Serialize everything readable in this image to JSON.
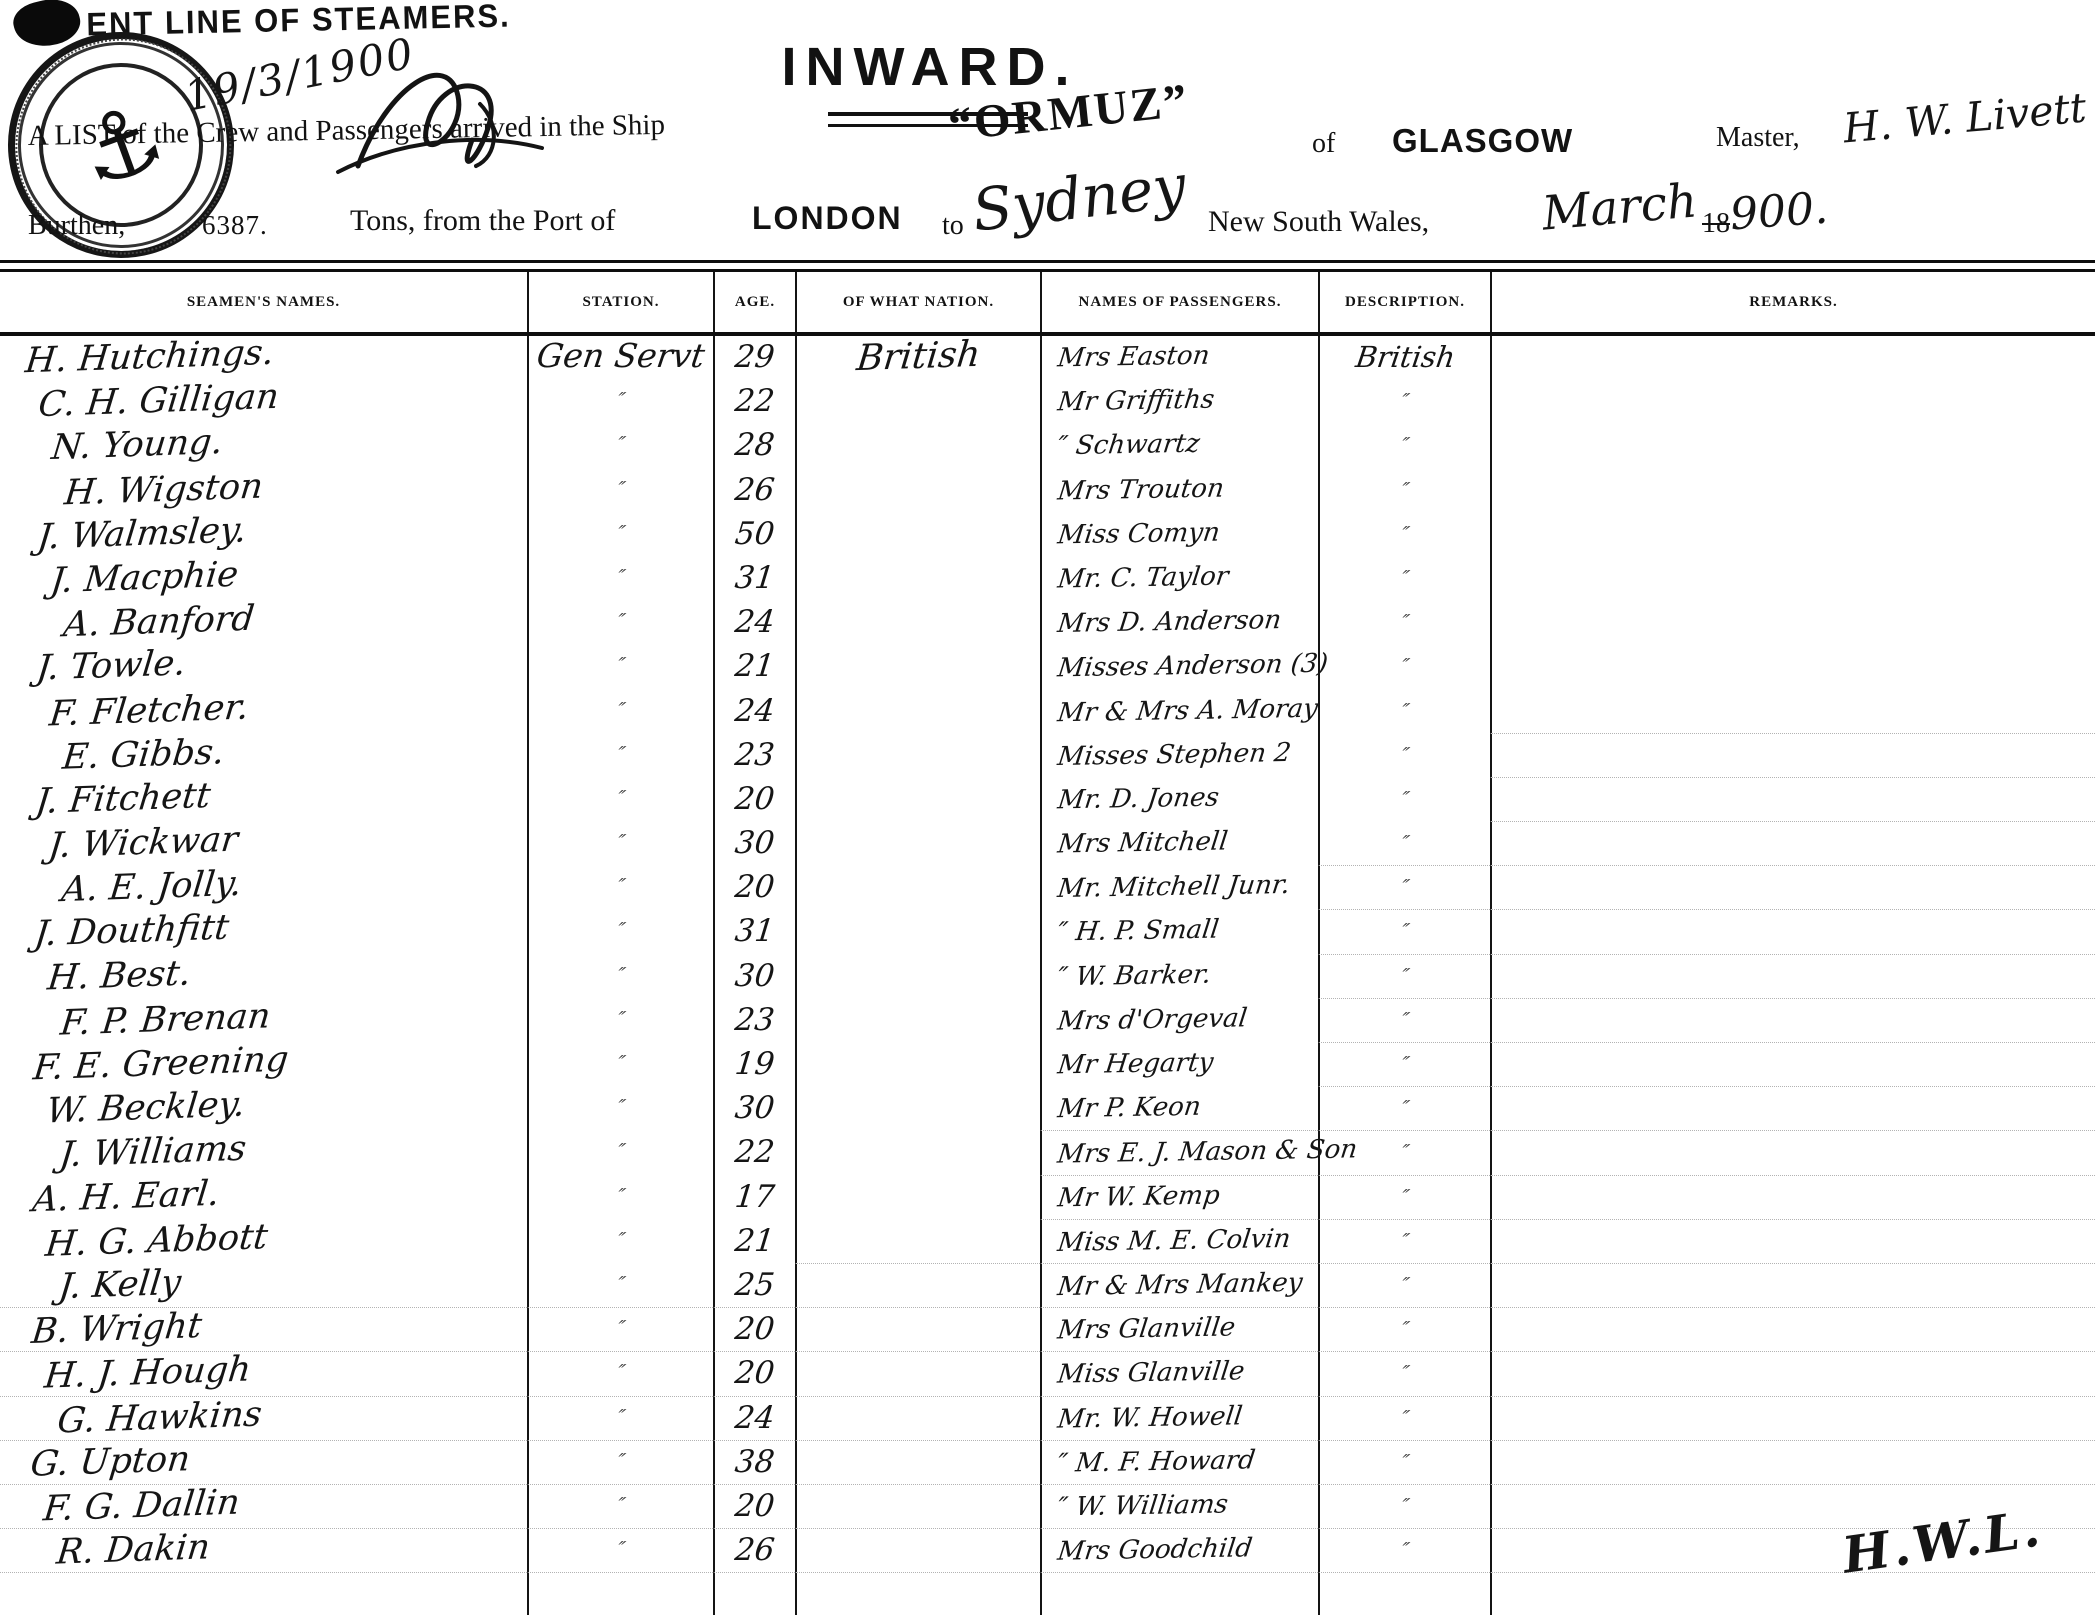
{
  "masthead": {
    "line_text": "ENT LINE OF STEAMERS.",
    "seal_icon": "anchor-seal",
    "date_hw": "19/3/1900"
  },
  "title": "INWARD.",
  "header": {
    "list_line_prefix": "A LIST of the Crew and Passengers arrived in the Ship",
    "ship_name": "“ORMUZ”",
    "of_label": "of",
    "port_of_registry": "GLASGOW",
    "master_label": "Master,",
    "master_name_hw": "H. W. Livett",
    "burthen_label": "Burthen,",
    "burthen_value": "6387.",
    "tons_line": "Tons, from the Port of",
    "port_from": "LONDON",
    "to_label": "to",
    "destination_hw": "Sydney",
    "destination_rest": "New South Wales,",
    "month_hw": "March",
    "year_printed": "18",
    "year_hw": "900."
  },
  "table": {
    "columns": [
      "SEAMEN'S NAMES.",
      "STATION.",
      "AGE.",
      "OF WHAT NATION.",
      "NAMES OF PASSENGERS.",
      "DESCRIPTION.",
      "REMARKS."
    ],
    "ditto_mark": "″",
    "rows": [
      {
        "seaman": "H. Hutchings.",
        "station": "Gen Servt",
        "age": "29",
        "nation": "British",
        "passenger": "Mrs Easton",
        "description": "British",
        "remarks": ""
      },
      {
        "seaman": "C. H. Gilligan",
        "station": "″",
        "age": "22",
        "nation": "",
        "passenger": "Mr Griffiths",
        "description": "″",
        "remarks": ""
      },
      {
        "seaman": "N. Young.",
        "station": "″",
        "age": "28",
        "nation": "",
        "passenger": "″ Schwartz",
        "description": "″",
        "remarks": ""
      },
      {
        "seaman": "H. Wigston",
        "station": "″",
        "age": "26",
        "nation": "",
        "passenger": "Mrs Trouton",
        "description": "″",
        "remarks": ""
      },
      {
        "seaman": "J. Walmsley.",
        "station": "″",
        "age": "50",
        "nation": "",
        "passenger": "Miss Comyn",
        "description": "″",
        "remarks": ""
      },
      {
        "seaman": "J. Macphie",
        "station": "″",
        "age": "31",
        "nation": "",
        "passenger": "Mr. C. Taylor",
        "description": "″",
        "remarks": ""
      },
      {
        "seaman": "A. Banford",
        "station": "″",
        "age": "24",
        "nation": "",
        "passenger": "Mrs D. Anderson",
        "description": "″",
        "remarks": ""
      },
      {
        "seaman": "J. Towle.",
        "station": "″",
        "age": "21",
        "nation": "",
        "passenger": "Misses Anderson (3)",
        "description": "″",
        "remarks": ""
      },
      {
        "seaman": "F. Fletcher.",
        "station": "″",
        "age": "24",
        "nation": "",
        "passenger": "Mr & Mrs A. Moray",
        "description": "″",
        "remarks": ""
      },
      {
        "seaman": "E. Gibbs.",
        "station": "″",
        "age": "23",
        "nation": "",
        "passenger": "Misses Stephen 2",
        "description": "″",
        "remarks": ""
      },
      {
        "seaman": "J. Fitchett",
        "station": "″",
        "age": "20",
        "nation": "",
        "passenger": "Mr. D. Jones",
        "description": "″",
        "remarks": ""
      },
      {
        "seaman": "J. Wickwar",
        "station": "″",
        "age": "30",
        "nation": "",
        "passenger": "Mrs Mitchell",
        "description": "″",
        "remarks": ""
      },
      {
        "seaman": "A. E. Jolly.",
        "station": "″",
        "age": "20",
        "nation": "",
        "passenger": "Mr. Mitchell Junr.",
        "description": "″",
        "remarks": ""
      },
      {
        "seaman": "J. Douthfitt",
        "station": "″",
        "age": "31",
        "nation": "",
        "passenger": "″ H. P. Small",
        "description": "″",
        "remarks": ""
      },
      {
        "seaman": "H. Best.",
        "station": "″",
        "age": "30",
        "nation": "",
        "passenger": "″ W. Barker.",
        "description": "″",
        "remarks": ""
      },
      {
        "seaman": "F. P. Brenan",
        "station": "″",
        "age": "23",
        "nation": "",
        "passenger": "Mrs d'Orgeval",
        "description": "″",
        "remarks": ""
      },
      {
        "seaman": "F. E. Greening",
        "station": "″",
        "age": "19",
        "nation": "",
        "passenger": "Mr Hegarty",
        "description": "″",
        "remarks": ""
      },
      {
        "seaman": "W. Beckley.",
        "station": "″",
        "age": "30",
        "nation": "",
        "passenger": "Mr P. Keon",
        "description": "″",
        "remarks": ""
      },
      {
        "seaman": "J. Williams",
        "station": "″",
        "age": "22",
        "nation": "",
        "passenger": "Mrs E. J. Mason & Son",
        "description": "″",
        "remarks": ""
      },
      {
        "seaman": "A. H. Earl.",
        "station": "″",
        "age": "17",
        "nation": "",
        "passenger": "Mr W. Kemp",
        "description": "″",
        "remarks": ""
      },
      {
        "seaman": "H. G. Abbott",
        "station": "″",
        "age": "21",
        "nation": "",
        "passenger": "Miss M. E. Colvin",
        "description": "″",
        "remarks": ""
      },
      {
        "seaman": "J. Kelly",
        "station": "″",
        "age": "25",
        "nation": "",
        "passenger": "Mr & Mrs Mankey",
        "description": "″",
        "remarks": ""
      },
      {
        "seaman": "B. Wright",
        "station": "″",
        "age": "20",
        "nation": "",
        "passenger": "Mrs Glanville",
        "description": "″",
        "remarks": ""
      },
      {
        "seaman": "H. J. Hough",
        "station": "″",
        "age": "20",
        "nation": "",
        "passenger": "Miss Glanville",
        "description": "″",
        "remarks": ""
      },
      {
        "seaman": "G. Hawkins",
        "station": "″",
        "age": "24",
        "nation": "",
        "passenger": "Mr. W. Howell",
        "description": "″",
        "remarks": ""
      },
      {
        "seaman": "G. Upton",
        "station": "″",
        "age": "38",
        "nation": "",
        "passenger": "″ M. F. Howard",
        "description": "″",
        "remarks": ""
      },
      {
        "seaman": "F. G. Dallin",
        "station": "″",
        "age": "20",
        "nation": "",
        "passenger": "″ W. Williams",
        "description": "″",
        "remarks": ""
      },
      {
        "seaman": "R. Dakin",
        "station": "″",
        "age": "26",
        "nation": "",
        "passenger": "Mrs Goodchild",
        "description": "″",
        "remarks": ""
      }
    ]
  },
  "footer": {
    "signature_hw": "H.W.L."
  }
}
